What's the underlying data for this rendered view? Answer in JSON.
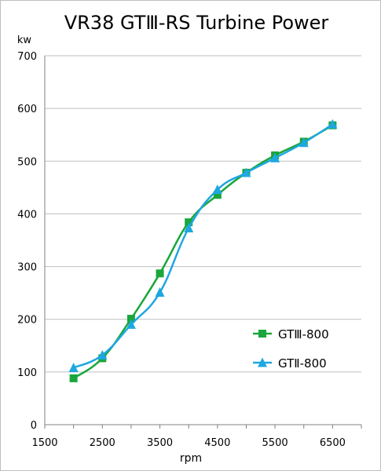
{
  "chart_data": {
    "type": "line",
    "title": "VR38 GTⅢ-RS Turbine Power",
    "xlabel": "rpm",
    "ylabel": "kw",
    "xlim": [
      1500,
      7000
    ],
    "ylim": [
      0,
      700
    ],
    "x_ticks": [
      "1500",
      "2500",
      "3500",
      "4500",
      "5500",
      "6500"
    ],
    "y_ticks": [
      "0",
      "100",
      "200",
      "300",
      "400",
      "500",
      "600",
      "700"
    ],
    "grid": "horizontal",
    "legend_position": "right",
    "series": [
      {
        "name": "GTⅢ-800",
        "color": "#1aa63c",
        "marker": "square",
        "x": [
          2000,
          2500,
          3000,
          3500,
          4000,
          4500,
          5000,
          5500,
          6000,
          6500
        ],
        "y": [
          88,
          126,
          201,
          287,
          384,
          436,
          478,
          511,
          537,
          568
        ]
      },
      {
        "name": "GTⅡ-800",
        "color": "#1ea7e1",
        "marker": "triangle",
        "x": [
          2000,
          2500,
          3000,
          3500,
          4000,
          4500,
          5000,
          5500,
          6000,
          6500
        ],
        "y": [
          108,
          132,
          190,
          251,
          373,
          446,
          478,
          506,
          535,
          570
        ]
      }
    ]
  }
}
